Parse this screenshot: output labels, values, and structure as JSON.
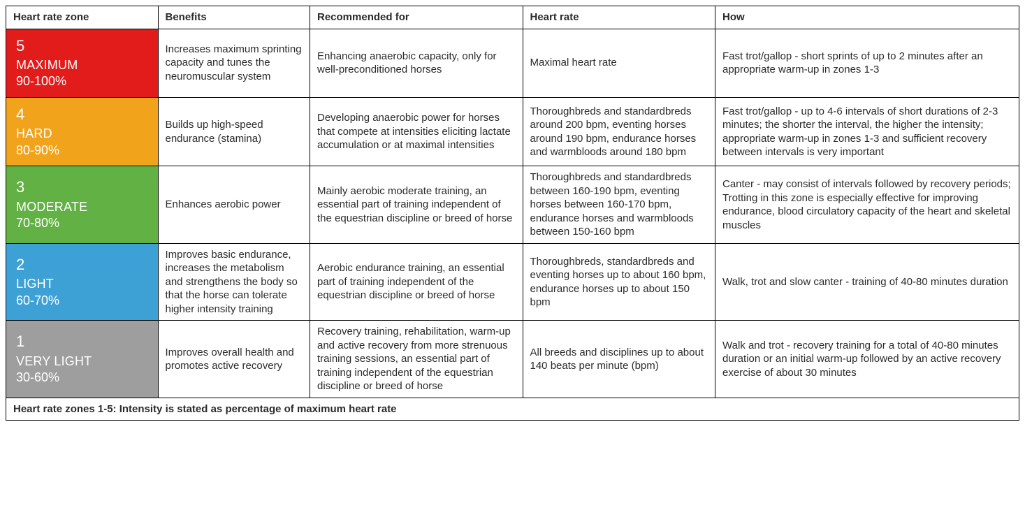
{
  "headers": {
    "zone": "Heart rate zone",
    "benefits": "Benefits",
    "recommended": "Recommended for",
    "heart_rate": "Heart rate",
    "how": "How"
  },
  "zones": [
    {
      "num": "5",
      "name": "MAXIMUM",
      "range": "90-100%",
      "bg": "#e21b1b",
      "benefits": "Increases maximum sprinting capacity and tunes the neuromuscular system",
      "recommended": "Enhancing anaerobic capacity, only for well-preconditioned horses",
      "heart_rate": "Maximal heart rate",
      "how": "Fast trot/gallop - short sprints of up to 2 minutes after an appropriate warm-up in zones 1-3"
    },
    {
      "num": "4",
      "name": "HARD",
      "range": "80-90%",
      "bg": "#f1a31c",
      "benefits": "Builds up high-speed endurance (stamina)",
      "recommended": "Developing anaerobic power for horses that compete at intensities eliciting lactate accumulation or at maximal intensities",
      "heart_rate": "Thoroughbreds and standardbreds around 200 bpm, eventing horses around 190 bpm, endurance horses and warmbloods around 180 bpm",
      "how": "Fast trot/gallop - up to 4-6 intervals of short durations of 2-3 minutes; the shorter the interval, the higher the intensity; appropriate warm-up in zones 1-3 and sufficient recovery between intervals is very important"
    },
    {
      "num": "3",
      "name": "MODERATE",
      "range": "70-80%",
      "bg": "#62b145",
      "benefits": "Enhances aerobic power",
      "recommended": "Mainly aerobic moderate training, an essential part of training independent of the equestrian discipline or breed of horse",
      "heart_rate": "Thoroughbreds and standardbreds between 160-190 bpm, eventing horses between 160-170 bpm, endurance horses and warmbloods between 150-160 bpm",
      "how": "Canter - may consist of intervals followed by recovery periods; Trotting in this zone is especially effective for improving endurance, blood circulatory capacity of the heart and skeletal muscles"
    },
    {
      "num": "2",
      "name": "LIGHT",
      "range": "60-70%",
      "bg": "#3ea1d6",
      "benefits": "Improves basic endurance, increases the metabolism and strengthens the body so that the horse can tolerate higher intensity training",
      "recommended": "Aerobic endurance training, an essential part of training independent of the equestrian discipline or breed of horse",
      "heart_rate": "Thoroughbreds, standardbreds and eventing horses up to about 160 bpm, endurance horses up to about 150 bpm",
      "how": "Walk, trot and slow canter - training of 40-80 minutes duration"
    },
    {
      "num": "1",
      "name": "VERY LIGHT",
      "range": "30-60%",
      "bg": "#9e9e9e",
      "benefits": "Improves overall health and promotes active recovery",
      "recommended": "Recovery training, rehabilitation, warm-up and active recovery from more strenuous training sessions, an essential part of training independent of the equestrian discipline or breed of horse",
      "heart_rate": "All breeds and disciplines up to about 140 beats per minute (bpm)",
      "how": "Walk and trot - recovery training for a total of 40-80 minutes duration or an initial warm-up followed by an active recovery exercise of about 30  minutes"
    }
  ],
  "footer": "Heart rate zones 1-5: Intensity is stated as percentage of maximum heart rate"
}
